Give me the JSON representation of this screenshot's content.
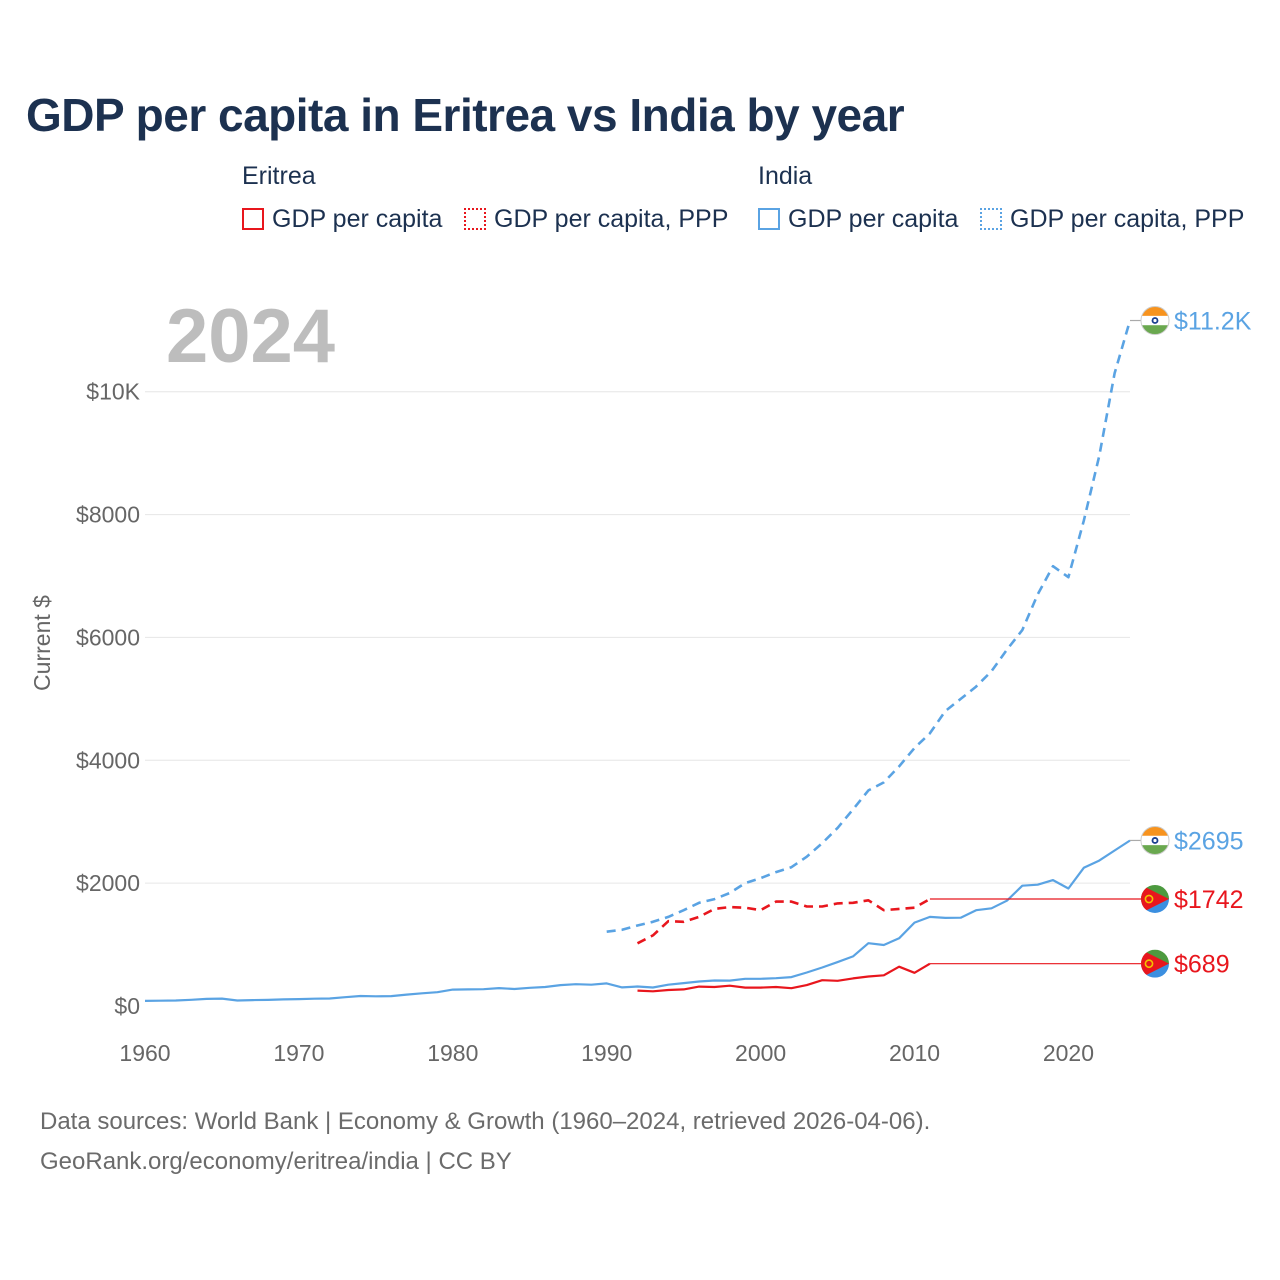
{
  "title": "GDP per capita in Eritrea vs India by year",
  "legend": {
    "eritrea": {
      "label": "Eritrea",
      "gdp": "GDP per capita",
      "ppp": "GDP per capita, PPP"
    },
    "india": {
      "label": "India",
      "gdp": "GDP per capita",
      "ppp": "GDP per capita, PPP"
    }
  },
  "colors": {
    "eritrea": "#e8161d",
    "india": "#5aa3e3",
    "grid": "#e6e6e6",
    "tick": "#666666"
  },
  "source": {
    "line1": "Data sources: World Bank | Economy & Growth (1960–2024, retrieved 2026-04-06).",
    "line2": "GeoRank.org/economy/eritrea/india | CC BY"
  },
  "chart_data": {
    "type": "line",
    "title": "GDP per capita in Eritrea vs India by year",
    "year_label": "2024",
    "xlabel": "",
    "ylabel": "Current $",
    "xlim": [
      1960,
      2024
    ],
    "ylim": [
      0,
      11200
    ],
    "x_ticks": [
      1960,
      1970,
      1980,
      1990,
      2000,
      2010,
      2020
    ],
    "y_ticks": [
      {
        "value": 0,
        "label": "$0"
      },
      {
        "value": 2000,
        "label": "$2000"
      },
      {
        "value": 4000,
        "label": "$4000"
      },
      {
        "value": 6000,
        "label": "$6000"
      },
      {
        "value": 8000,
        "label": "$8000"
      },
      {
        "value": 10000,
        "label": "$10K"
      }
    ],
    "series": [
      {
        "name": "India GDP per capita PPP",
        "country": "india",
        "style": "dashed",
        "end_label": "$11.2K",
        "x": [
          1990,
          1991,
          1992,
          1993,
          1994,
          1995,
          1996,
          1997,
          1998,
          1999,
          2000,
          2001,
          2002,
          2003,
          2004,
          2005,
          2006,
          2007,
          2008,
          2009,
          2010,
          2011,
          2012,
          2013,
          2014,
          2015,
          2016,
          2017,
          2018,
          2019,
          2020,
          2021,
          2022,
          2023,
          2024
        ],
        "y": [
          1210,
          1240,
          1310,
          1370,
          1450,
          1560,
          1680,
          1740,
          1840,
          2000,
          2080,
          2180,
          2260,
          2430,
          2650,
          2900,
          3200,
          3510,
          3640,
          3900,
          4200,
          4440,
          4800,
          5000,
          5200,
          5450,
          5800,
          6120,
          6700,
          7160,
          6980,
          7900,
          8950,
          10300,
          11159
        ]
      },
      {
        "name": "India GDP per capita",
        "country": "india",
        "style": "solid",
        "end_label": "$2695",
        "x": [
          1960,
          1961,
          1962,
          1963,
          1964,
          1965,
          1966,
          1967,
          1968,
          1969,
          1970,
          1971,
          1972,
          1973,
          1974,
          1975,
          1976,
          1977,
          1978,
          1979,
          1980,
          1981,
          1982,
          1983,
          1984,
          1985,
          1986,
          1987,
          1988,
          1989,
          1990,
          1991,
          1992,
          1993,
          1994,
          1995,
          1996,
          1997,
          1998,
          1999,
          2000,
          2001,
          2002,
          2003,
          2004,
          2005,
          2006,
          2007,
          2008,
          2009,
          2010,
          2011,
          2012,
          2013,
          2014,
          2015,
          2016,
          2017,
          2018,
          2019,
          2020,
          2021,
          2022,
          2023,
          2024
        ],
        "y": [
          83,
          86,
          90,
          101,
          116,
          120,
          90,
          96,
          100,
          108,
          112,
          119,
          122,
          144,
          163,
          158,
          161,
          186,
          206,
          224,
          267,
          271,
          274,
          292,
          277,
          296,
          310,
          340,
          355,
          346,
          368,
          303,
          317,
          301,
          346,
          373,
          399,
          415,
          413,
          442,
          443,
          452,
          471,
          546,
          627,
          714,
          808,
          1023,
          993,
          1102,
          1358,
          1450,
          1434,
          1438,
          1560,
          1590,
          1714,
          1958,
          1974,
          2050,
          1913,
          2250,
          2367,
          2531,
          2695
        ]
      },
      {
        "name": "Eritrea GDP per capita PPP",
        "country": "eritrea",
        "style": "dashed",
        "end_label": "$1742",
        "x": [
          1992,
          1993,
          1994,
          1995,
          1996,
          1997,
          1998,
          1999,
          2000,
          2001,
          2002,
          2003,
          2004,
          2005,
          2006,
          2007,
          2008,
          2009,
          2010,
          2011
        ],
        "y": [
          1020,
          1150,
          1380,
          1370,
          1450,
          1580,
          1610,
          1600,
          1560,
          1700,
          1700,
          1620,
          1620,
          1670,
          1680,
          1720,
          1560,
          1580,
          1600,
          1742
        ]
      },
      {
        "name": "Eritrea GDP per capita",
        "country": "eritrea",
        "style": "solid",
        "end_label": "$689",
        "x": [
          1992,
          1993,
          1994,
          1995,
          1996,
          1997,
          1998,
          1999,
          2000,
          2001,
          2002,
          2003,
          2004,
          2005,
          2006,
          2007,
          2008,
          2009,
          2010,
          2011
        ],
        "y": [
          250,
          240,
          260,
          270,
          315,
          310,
          330,
          300,
          300,
          310,
          290,
          340,
          420,
          410,
          450,
          480,
          500,
          640,
          540,
          689
        ]
      }
    ]
  }
}
